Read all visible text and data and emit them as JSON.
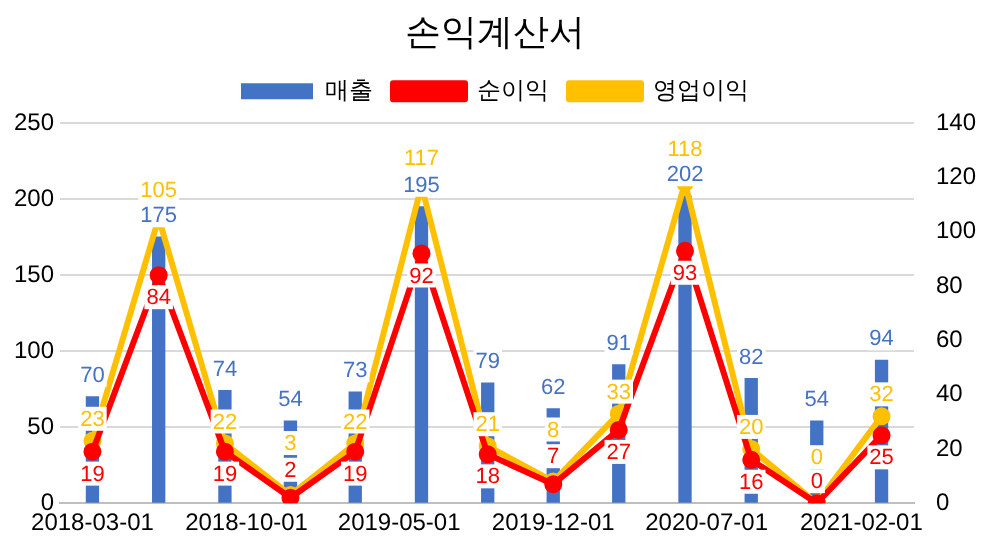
{
  "chart_data": {
    "type": "bar",
    "title": "손익계산서",
    "x": [
      "2018-03-01",
      "2018-06-01",
      "2018-09-01",
      "2018-12-01",
      "2019-03-01",
      "2019-06-01",
      "2019-09-01",
      "2019-12-01",
      "2020-03-01",
      "2020-06-01",
      "2020-09-01",
      "2020-12-01",
      "2021-03-01"
    ],
    "xlim": [
      "2018-01-15",
      "2021-04-15"
    ],
    "xticks": [
      {
        "value": "2018-03-01",
        "label": "2018-03-01"
      },
      {
        "value": "2018-10-01",
        "label": "2018-10-01"
      },
      {
        "value": "2019-05-01",
        "label": "2019-05-01"
      },
      {
        "value": "2019-12-01",
        "label": "2019-12-01"
      },
      {
        "value": "2020-07-01",
        "label": "2020-07-01"
      },
      {
        "value": "2021-02-01",
        "label": "2021-02-01"
      }
    ],
    "series": [
      {
        "name": "매출",
        "color": "#4472c4",
        "values": [
          70,
          175,
          74,
          54,
          73,
          195,
          79,
          62,
          91,
          202,
          82,
          54,
          94
        ]
      },
      {
        "name": "순이익",
        "type": "line",
        "axis": "y2",
        "color": "#ff0000",
        "values": [
          19,
          84,
          19,
          2,
          19,
          92,
          18,
          7,
          27,
          93,
          16,
          0,
          25
        ]
      },
      {
        "name": "영업이익",
        "type": "line",
        "axis": "y2",
        "color": "#ffc000",
        "values": [
          23,
          105,
          22,
          3,
          22,
          117,
          21,
          8,
          33,
          118,
          20,
          0,
          32
        ]
      }
    ],
    "ylim": [
      0,
      250
    ],
    "yticks": [
      0,
      50,
      100,
      150,
      200,
      250
    ],
    "y2lim": [
      0,
      140
    ],
    "y2ticks": [
      0,
      20,
      40,
      60,
      80,
      100,
      120,
      140
    ],
    "grid": "y",
    "legend": "top",
    "marker": "circle",
    "data_labels": true
  }
}
